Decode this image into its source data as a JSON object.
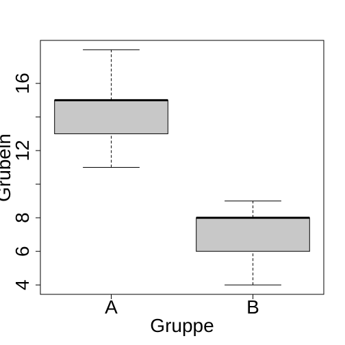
{
  "chart_data": {
    "type": "boxplot",
    "title": "",
    "xlabel": "Gruppe",
    "ylabel": "Grübeln",
    "categories": [
      "A",
      "B"
    ],
    "boxes": [
      {
        "category": "A",
        "min": 11,
        "q1": 13,
        "median": 15,
        "q3": 15,
        "max": 18
      },
      {
        "category": "B",
        "min": 4,
        "q1": 6,
        "median": 8,
        "q3": 8,
        "max": 9
      }
    ],
    "yticks": [
      4,
      6,
      8,
      10,
      12,
      14,
      16
    ],
    "ytick_labels": [
      "4",
      "6",
      "8",
      "",
      "12",
      "",
      "16"
    ],
    "ylim": [
      3.44,
      18.56
    ],
    "grid": false,
    "box_fill": "#c8c8c8",
    "line_color": "#000000"
  }
}
